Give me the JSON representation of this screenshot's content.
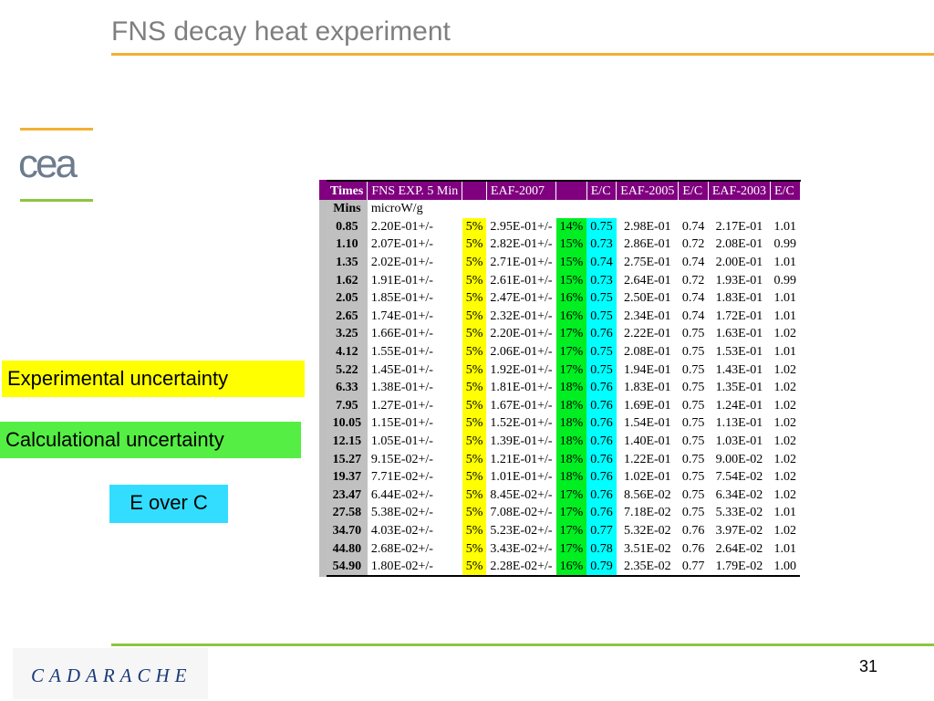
{
  "slide": {
    "title": "FNS decay heat experiment",
    "page_number": "31",
    "footer_logo_text": "CADARACHE",
    "cea_logo_text": "cea"
  },
  "legend": {
    "experimental": "Experimental uncertainty",
    "calculational": "Calculational uncertainty",
    "e_over_c": "E over C"
  },
  "colors": {
    "title_rule": "#f2b134",
    "footer_rule": "#8cc63f",
    "header_bg": "#800080",
    "experimental": "#ffff00",
    "calculational": "#00ee22",
    "e_over_c": "#00ffff"
  },
  "table": {
    "headers": [
      "Times",
      "FNS EXP. 5 Min",
      "",
      "EAF-2007",
      "",
      "E/C",
      "EAF-2005",
      "E/C",
      "EAF-2003",
      "E/C"
    ],
    "units_row": [
      "Mins",
      "microW/g"
    ],
    "rows": [
      [
        "0.85",
        "2.20E-01+/-",
        "5%",
        "2.95E-01+/-",
        "14%",
        "0.75",
        "2.98E-01",
        "0.74",
        "2.17E-01",
        "1.01"
      ],
      [
        "1.10",
        "2.07E-01+/-",
        "5%",
        "2.82E-01+/-",
        "15%",
        "0.73",
        "2.86E-01",
        "0.72",
        "2.08E-01",
        "0.99"
      ],
      [
        "1.35",
        "2.02E-01+/-",
        "5%",
        "2.71E-01+/-",
        "15%",
        "0.74",
        "2.75E-01",
        "0.74",
        "2.00E-01",
        "1.01"
      ],
      [
        "1.62",
        "1.91E-01+/-",
        "5%",
        "2.61E-01+/-",
        "15%",
        "0.73",
        "2.64E-01",
        "0.72",
        "1.93E-01",
        "0.99"
      ],
      [
        "2.05",
        "1.85E-01+/-",
        "5%",
        "2.47E-01+/-",
        "16%",
        "0.75",
        "2.50E-01",
        "0.74",
        "1.83E-01",
        "1.01"
      ],
      [
        "2.65",
        "1.74E-01+/-",
        "5%",
        "2.32E-01+/-",
        "16%",
        "0.75",
        "2.34E-01",
        "0.74",
        "1.72E-01",
        "1.01"
      ],
      [
        "3.25",
        "1.66E-01+/-",
        "5%",
        "2.20E-01+/-",
        "17%",
        "0.76",
        "2.22E-01",
        "0.75",
        "1.63E-01",
        "1.02"
      ],
      [
        "4.12",
        "1.55E-01+/-",
        "5%",
        "2.06E-01+/-",
        "17%",
        "0.75",
        "2.08E-01",
        "0.75",
        "1.53E-01",
        "1.01"
      ],
      [
        "5.22",
        "1.45E-01+/-",
        "5%",
        "1.92E-01+/-",
        "17%",
        "0.75",
        "1.94E-01",
        "0.75",
        "1.43E-01",
        "1.02"
      ],
      [
        "6.33",
        "1.38E-01+/-",
        "5%",
        "1.81E-01+/-",
        "18%",
        "0.76",
        "1.83E-01",
        "0.75",
        "1.35E-01",
        "1.02"
      ],
      [
        "7.95",
        "1.27E-01+/-",
        "5%",
        "1.67E-01+/-",
        "18%",
        "0.76",
        "1.69E-01",
        "0.75",
        "1.24E-01",
        "1.02"
      ],
      [
        "10.05",
        "1.15E-01+/-",
        "5%",
        "1.52E-01+/-",
        "18%",
        "0.76",
        "1.54E-01",
        "0.75",
        "1.13E-01",
        "1.02"
      ],
      [
        "12.15",
        "1.05E-01+/-",
        "5%",
        "1.39E-01+/-",
        "18%",
        "0.76",
        "1.40E-01",
        "0.75",
        "1.03E-01",
        "1.02"
      ],
      [
        "15.27",
        "9.15E-02+/-",
        "5%",
        "1.21E-01+/-",
        "18%",
        "0.76",
        "1.22E-01",
        "0.75",
        "9.00E-02",
        "1.02"
      ],
      [
        "19.37",
        "7.71E-02+/-",
        "5%",
        "1.01E-01+/-",
        "18%",
        "0.76",
        "1.02E-01",
        "0.75",
        "7.54E-02",
        "1.02"
      ],
      [
        "23.47",
        "6.44E-02+/-",
        "5%",
        "8.45E-02+/-",
        "17%",
        "0.76",
        "8.56E-02",
        "0.75",
        "6.34E-02",
        "1.02"
      ],
      [
        "27.58",
        "5.38E-02+/-",
        "5%",
        "7.08E-02+/-",
        "17%",
        "0.76",
        "7.18E-02",
        "0.75",
        "5.33E-02",
        "1.01"
      ],
      [
        "34.70",
        "4.03E-02+/-",
        "5%",
        "5.23E-02+/-",
        "17%",
        "0.77",
        "5.32E-02",
        "0.76",
        "3.97E-02",
        "1.02"
      ],
      [
        "44.80",
        "2.68E-02+/-",
        "5%",
        "3.43E-02+/-",
        "17%",
        "0.78",
        "3.51E-02",
        "0.76",
        "2.64E-02",
        "1.01"
      ],
      [
        "54.90",
        "1.80E-02+/-",
        "5%",
        "2.28E-02+/-",
        "16%",
        "0.79",
        "2.35E-02",
        "0.77",
        "1.79E-02",
        "1.00"
      ]
    ]
  }
}
